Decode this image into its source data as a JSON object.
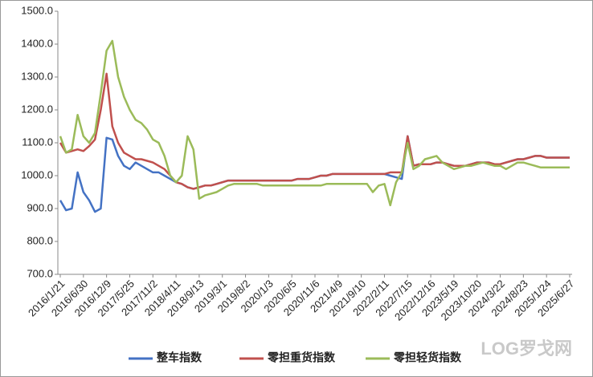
{
  "chart_data": {
    "type": "line",
    "categories": [
      "2016/1/21",
      null,
      null,
      null,
      "2016/6/30",
      null,
      null,
      null,
      "2016/12/9",
      null,
      null,
      null,
      "2017/5/25",
      null,
      null,
      null,
      "2017/11/2",
      null,
      null,
      null,
      "2018/4/11",
      null,
      null,
      null,
      "2018/9/13",
      null,
      null,
      null,
      "2019/3/1",
      null,
      null,
      null,
      "2019/8/2",
      null,
      null,
      null,
      "2020/1/3",
      null,
      null,
      null,
      "2020/6/5",
      null,
      null,
      null,
      "2020/11/6",
      null,
      null,
      null,
      "2021/4/9",
      null,
      null,
      null,
      "2021/9/10",
      null,
      null,
      null,
      "2022/2/11",
      null,
      null,
      null,
      "2022/7/15",
      null,
      null,
      null,
      "2022/12/16",
      null,
      null,
      null,
      "2023/5/19",
      null,
      null,
      null,
      "2023/10/20",
      null,
      null,
      null,
      "2024/3/22",
      null,
      null,
      null,
      "2024/8/23",
      null,
      null,
      null,
      "2025/1/24",
      null,
      null,
      null,
      "2025/6/27"
    ],
    "series": [
      {
        "name": "整车指数",
        "color": "#4472c4",
        "values": [
          925,
          895,
          900,
          1010,
          950,
          925,
          890,
          900,
          1115,
          1110,
          1060,
          1030,
          1020,
          1040,
          1030,
          1020,
          1010,
          1010,
          1000,
          990,
          980,
          975,
          965,
          960,
          965,
          970,
          970,
          975,
          980,
          985,
          985,
          985,
          985,
          985,
          985,
          985,
          985,
          985,
          985,
          985,
          985,
          990,
          990,
          990,
          995,
          1000,
          1000,
          1005,
          1005,
          1005,
          1005,
          1005,
          1005,
          1005,
          1005,
          1005,
          1005,
          1000,
          995,
          990,
          1120,
          1030,
          1035,
          1035,
          1035,
          1040,
          1040,
          1035,
          1030,
          1030,
          1030,
          1035,
          1040,
          1040,
          1040,
          1035,
          1035,
          1040,
          1045,
          1050,
          1050,
          1055,
          1060,
          1060,
          1055,
          1055,
          1055,
          1055,
          1055
        ]
      },
      {
        "name": "零担重货指数",
        "color": "#c0504d",
        "values": [
          1100,
          1070,
          1075,
          1080,
          1075,
          1090,
          1110,
          1200,
          1310,
          1150,
          1100,
          1070,
          1060,
          1050,
          1050,
          1045,
          1040,
          1030,
          1020,
          1000,
          980,
          975,
          965,
          960,
          965,
          970,
          970,
          975,
          980,
          985,
          985,
          985,
          985,
          985,
          985,
          985,
          985,
          985,
          985,
          985,
          985,
          990,
          990,
          990,
          995,
          1000,
          1000,
          1005,
          1005,
          1005,
          1005,
          1005,
          1005,
          1005,
          1005,
          1005,
          1005,
          1010,
          1010,
          1010,
          1120,
          1030,
          1035,
          1035,
          1035,
          1040,
          1040,
          1035,
          1030,
          1030,
          1030,
          1035,
          1040,
          1040,
          1040,
          1035,
          1035,
          1040,
          1045,
          1050,
          1050,
          1055,
          1060,
          1060,
          1055,
          1055,
          1055,
          1055,
          1055
        ]
      },
      {
        "name": "零担轻货指数",
        "color": "#9bbb59",
        "values": [
          1120,
          1070,
          1080,
          1185,
          1120,
          1100,
          1130,
          1250,
          1380,
          1410,
          1300,
          1240,
          1200,
          1170,
          1160,
          1140,
          1110,
          1100,
          1060,
          1000,
          980,
          1000,
          1120,
          1080,
          930,
          940,
          945,
          950,
          960,
          970,
          975,
          975,
          975,
          975,
          975,
          970,
          970,
          970,
          970,
          970,
          970,
          970,
          970,
          970,
          970,
          970,
          975,
          975,
          975,
          975,
          975,
          975,
          975,
          975,
          950,
          970,
          975,
          910,
          980,
          1010,
          1100,
          1020,
          1030,
          1050,
          1055,
          1060,
          1040,
          1030,
          1020,
          1025,
          1030,
          1030,
          1035,
          1040,
          1035,
          1030,
          1030,
          1020,
          1030,
          1040,
          1040,
          1035,
          1030,
          1025,
          1025,
          1025,
          1025,
          1025,
          1025
        ]
      }
    ],
    "ylim": [
      700,
      1500
    ],
    "yticks": [
      {
        "value": 700,
        "label": "700.0"
      },
      {
        "value": 800,
        "label": "800.0"
      },
      {
        "value": 900,
        "label": "900.0"
      },
      {
        "value": 1000,
        "label": "1000.0"
      },
      {
        "value": 1100,
        "label": "1100.0"
      },
      {
        "value": 1200,
        "label": "1200.0"
      },
      {
        "value": 1300,
        "label": "1300.0"
      },
      {
        "value": 1400,
        "label": "1400.0"
      },
      {
        "value": 1500,
        "label": "1500.0"
      }
    ],
    "grid": false,
    "legend": "bottom"
  },
  "watermark": "LOG罗戈网"
}
